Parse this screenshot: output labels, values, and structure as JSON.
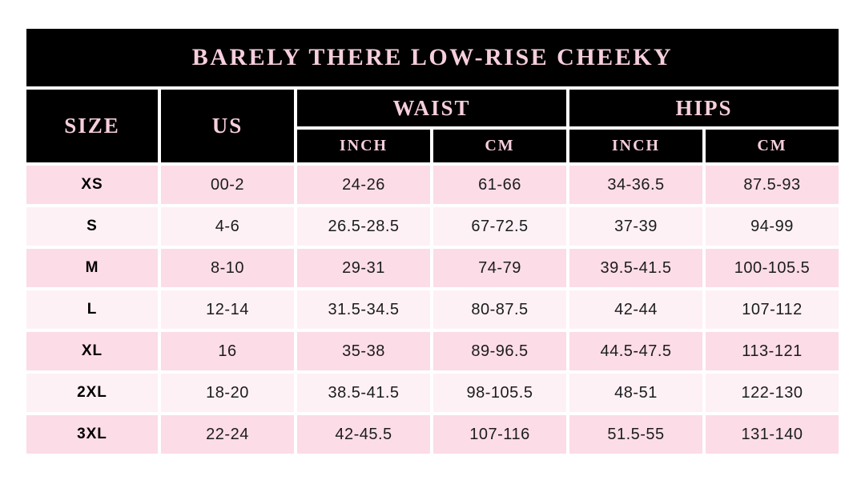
{
  "chart_data": {
    "type": "table",
    "title": "BARELY THERE LOW-RISE CHEEKY",
    "columns": [
      "SIZE",
      "US",
      "WAIST INCH",
      "WAIST CM",
      "HIPS INCH",
      "HIPS CM"
    ],
    "column_groups": [
      {
        "label": "WAIST",
        "children": [
          "INCH",
          "CM"
        ]
      },
      {
        "label": "HIPS",
        "children": [
          "INCH",
          "CM"
        ]
      }
    ],
    "rows": [
      [
        "XS",
        "00-2",
        "24-26",
        "61-66",
        "34-36.5",
        "87.5-93"
      ],
      [
        "S",
        "4-6",
        "26.5-28.5",
        "67-72.5",
        "37-39",
        "94-99"
      ],
      [
        "M",
        "8-10",
        "29-31",
        "74-79",
        "39.5-41.5",
        "100-105.5"
      ],
      [
        "L",
        "12-14",
        "31.5-34.5",
        "80-87.5",
        "42-44",
        "107-112"
      ],
      [
        "XL",
        "16",
        "35-38",
        "89-96.5",
        "44.5-47.5",
        "113-121"
      ],
      [
        "2XL",
        "18-20",
        "38.5-41.5",
        "98-105.5",
        "48-51",
        "122-130"
      ],
      [
        "3XL",
        "22-24",
        "42-45.5",
        "107-116",
        "51.5-55",
        "131-140"
      ]
    ]
  },
  "header": {
    "size": "SIZE",
    "us": "US",
    "waist": "WAIST",
    "hips": "HIPS",
    "inch": "INCH",
    "cm": "CM"
  },
  "colors": {
    "header_background": "#000000",
    "header_text": "#f6cedd",
    "row_dark": "#fbdce7",
    "row_light": "#fdf1f6",
    "data_text": "#1c1c1c",
    "page_background": "#ffffff"
  }
}
